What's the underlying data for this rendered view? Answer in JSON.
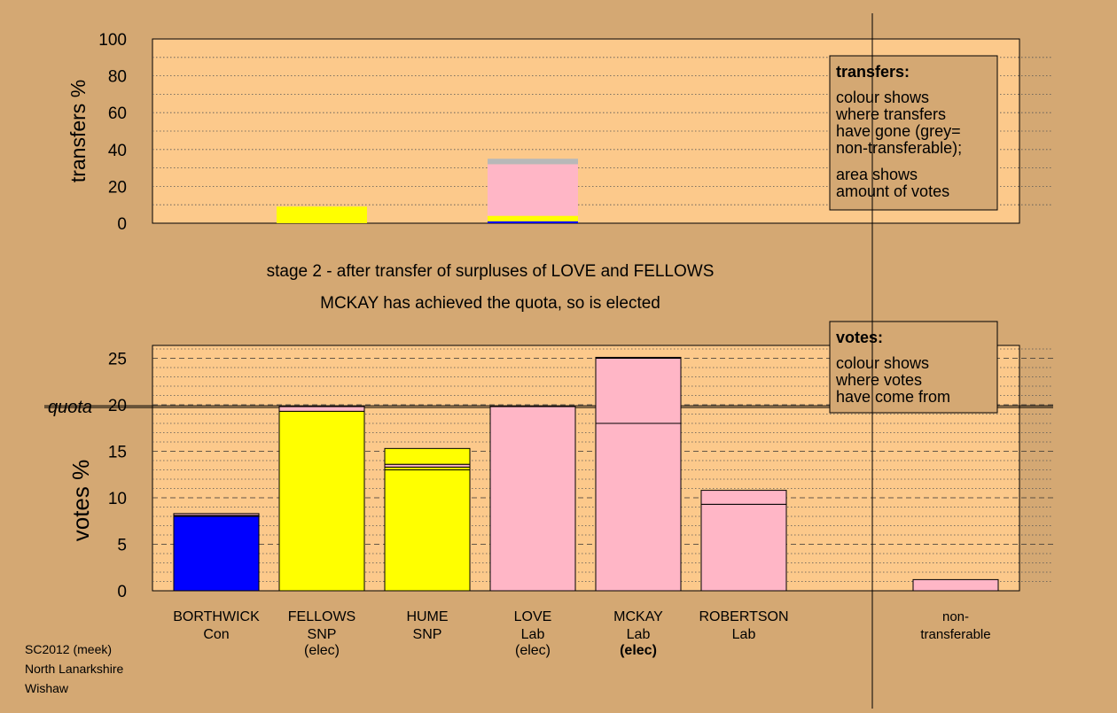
{
  "caption": {
    "stage": "stage 2 - after transfer of surpluses of LOVE and FELLOWS",
    "status": "MCKAY has achieved the quota, so is elected"
  },
  "footer": [
    "SC2012 (meek)",
    "North Lanarkshire",
    "Wishaw"
  ],
  "colors": {
    "background": "#d4a873",
    "plot": "#fcc98b",
    "con": "#0000ff",
    "snp": "#ffff00",
    "lab": "#ffb6c6",
    "nontransferable": "#b8b8b8"
  },
  "chart_data": [
    {
      "type": "bar",
      "stacked": true,
      "ylabel": "transfers %",
      "ylim": [
        0,
        100
      ],
      "yticks": [
        0,
        20,
        40,
        60,
        80,
        100
      ],
      "grid": true,
      "legend": {
        "title": "transfers:",
        "lines": [
          "colour shows",
          "where transfers",
          "have gone (grey=",
          "non-transferable);",
          "area shows",
          "amount of votes"
        ],
        "placement": "top-right"
      },
      "bars": [
        {
          "category": "FELLOWS",
          "segments": [
            {
              "value": 9,
              "color": "snp"
            }
          ]
        },
        {
          "category": "LOVE",
          "segments": [
            {
              "value": 1,
              "color": "con"
            },
            {
              "value": 3,
              "color": "snp"
            },
            {
              "value": 28,
              "color": "lab"
            },
            {
              "value": 3,
              "color": "nontransferable"
            }
          ]
        }
      ]
    },
    {
      "type": "bar",
      "stacked": true,
      "ylabel": "votes %",
      "ylim": [
        0,
        25
      ],
      "yticks": [
        0,
        5,
        10,
        15,
        20,
        25
      ],
      "grid": true,
      "quota": {
        "label": "quota",
        "value": 19.8
      },
      "legend": {
        "title": "votes:",
        "lines": [
          "colour shows",
          "where votes",
          "have come from"
        ],
        "placement": "top-right"
      },
      "categories": [
        {
          "name": "BORTHWICK",
          "party": "Con",
          "note": "",
          "note_bold": false
        },
        {
          "name": "FELLOWS",
          "party": "SNP",
          "note": "(elec)",
          "note_bold": false
        },
        {
          "name": "HUME",
          "party": "SNP",
          "note": "",
          "note_bold": false
        },
        {
          "name": "LOVE",
          "party": "Lab",
          "note": "(elec)",
          "note_bold": false
        },
        {
          "name": "MCKAY",
          "party": "Lab",
          "note": "(elec)",
          "note_bold": true
        },
        {
          "name": "ROBERTSON",
          "party": "Lab",
          "note": "",
          "note_bold": false
        },
        {
          "name": "",
          "party": "",
          "note": "",
          "note_bold": false
        },
        {
          "name": "non-",
          "party": "transferable",
          "note": "",
          "note_bold": false
        }
      ],
      "bars": [
        {
          "segments": [
            {
              "value": 8.0,
              "color": "con"
            },
            {
              "value": 0.1,
              "color": "con"
            },
            {
              "value": 0.2,
              "color": "lab"
            }
          ]
        },
        {
          "segments": [
            {
              "value": 19.3,
              "color": "snp"
            },
            {
              "value": 0.5,
              "color": "lab"
            }
          ]
        },
        {
          "segments": [
            {
              "value": 13.0,
              "color": "snp"
            },
            {
              "value": 0.3,
              "color": "snp"
            },
            {
              "value": 0.3,
              "color": "lab"
            },
            {
              "value": 1.7,
              "color": "snp"
            }
          ]
        },
        {
          "segments": [
            {
              "value": 19.8,
              "color": "lab"
            }
          ]
        },
        {
          "segments": [
            {
              "value": 18.0,
              "color": "lab"
            },
            {
              "value": 7.0,
              "color": "lab"
            },
            {
              "value": 0.1,
              "color": "con"
            }
          ]
        },
        {
          "segments": [
            {
              "value": 9.3,
              "color": "lab"
            },
            {
              "value": 1.5,
              "color": "lab"
            }
          ]
        },
        {
          "segments": []
        },
        {
          "segments": [
            {
              "value": 1.2,
              "color": "lab"
            }
          ]
        }
      ]
    }
  ]
}
